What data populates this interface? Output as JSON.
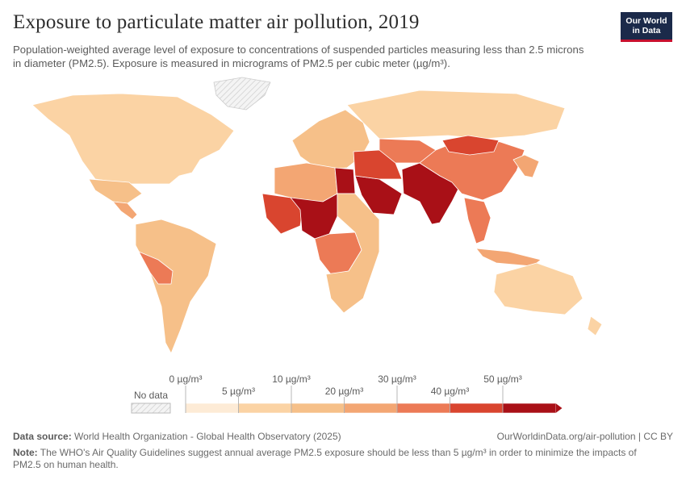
{
  "header": {
    "title": "Exposure to particulate matter air pollution, 2019",
    "subtitle": "Population-weighted average level of exposure to concentrations of suspended particles measuring less than 2.5 microns in diameter (PM2.5). Exposure is measured in micrograms of PM2.5 per cubic meter (µg/m³).",
    "logo_line1": "Our World",
    "logo_line2": "in Data"
  },
  "legend": {
    "no_data_label": "No data",
    "bins": [
      {
        "label": "0 µg/m³",
        "color": "#fdebd6"
      },
      {
        "label": "5 µg/m³",
        "color": "#fbd3a4"
      },
      {
        "label": "10 µg/m³",
        "color": "#f6c089"
      },
      {
        "label": "20 µg/m³",
        "color": "#f3a673"
      },
      {
        "label": "30 µg/m³",
        "color": "#ec7a56"
      },
      {
        "label": "40 µg/m³",
        "color": "#d9452f"
      },
      {
        "label": "50 µg/m³",
        "color": "#a91017"
      }
    ],
    "no_data_color": "#e6e6e6"
  },
  "map_regions": [
    {
      "name": "Greenland",
      "color": "no_data"
    },
    {
      "name": "North America",
      "color": "#fbd3a4"
    },
    {
      "name": "Mexico",
      "color": "#f6c089"
    },
    {
      "name": "Central America",
      "color": "#f3a673"
    },
    {
      "name": "South America",
      "color": "#f6c089"
    },
    {
      "name": "Bolivia-Peru",
      "color": "#ec7a56"
    },
    {
      "name": "Europe",
      "color": "#f6c089"
    },
    {
      "name": "Russia",
      "color": "#fbd3a4"
    },
    {
      "name": "North Africa",
      "color": "#f3a673"
    },
    {
      "name": "West Africa",
      "color": "#d9452f"
    },
    {
      "name": "Sahel",
      "color": "#a91017"
    },
    {
      "name": "Egypt",
      "color": "#a91017"
    },
    {
      "name": "Central Africa",
      "color": "#ec7a56"
    },
    {
      "name": "Southern Africa",
      "color": "#f6c089"
    },
    {
      "name": "Arabian Peninsula",
      "color": "#a91017"
    },
    {
      "name": "Middle East",
      "color": "#d9452f"
    },
    {
      "name": "Central Asia",
      "color": "#ec7a56"
    },
    {
      "name": "South Asia",
      "color": "#a91017"
    },
    {
      "name": "China",
      "color": "#ec7a56"
    },
    {
      "name": "Mongolia",
      "color": "#d9452f"
    },
    {
      "name": "Southeast Asia",
      "color": "#ec7a56"
    },
    {
      "name": "Japan-Korea",
      "color": "#f3a673"
    },
    {
      "name": "Indonesia",
      "color": "#f3a673"
    },
    {
      "name": "Australia",
      "color": "#fbd3a4"
    },
    {
      "name": "New Zealand",
      "color": "#fbd3a4"
    }
  ],
  "footer": {
    "source_label": "Data source:",
    "source_text": "World Health Organization - Global Health Observatory (2025)",
    "url": "OurWorldinData.org/air-pollution | CC BY",
    "note_label": "Note:",
    "note_text": "The WHO's Air Quality Guidelines suggest annual average PM2.5 exposure should be less than 5 µg/m³ in order to minimize the impacts of PM2.5 on human health."
  }
}
